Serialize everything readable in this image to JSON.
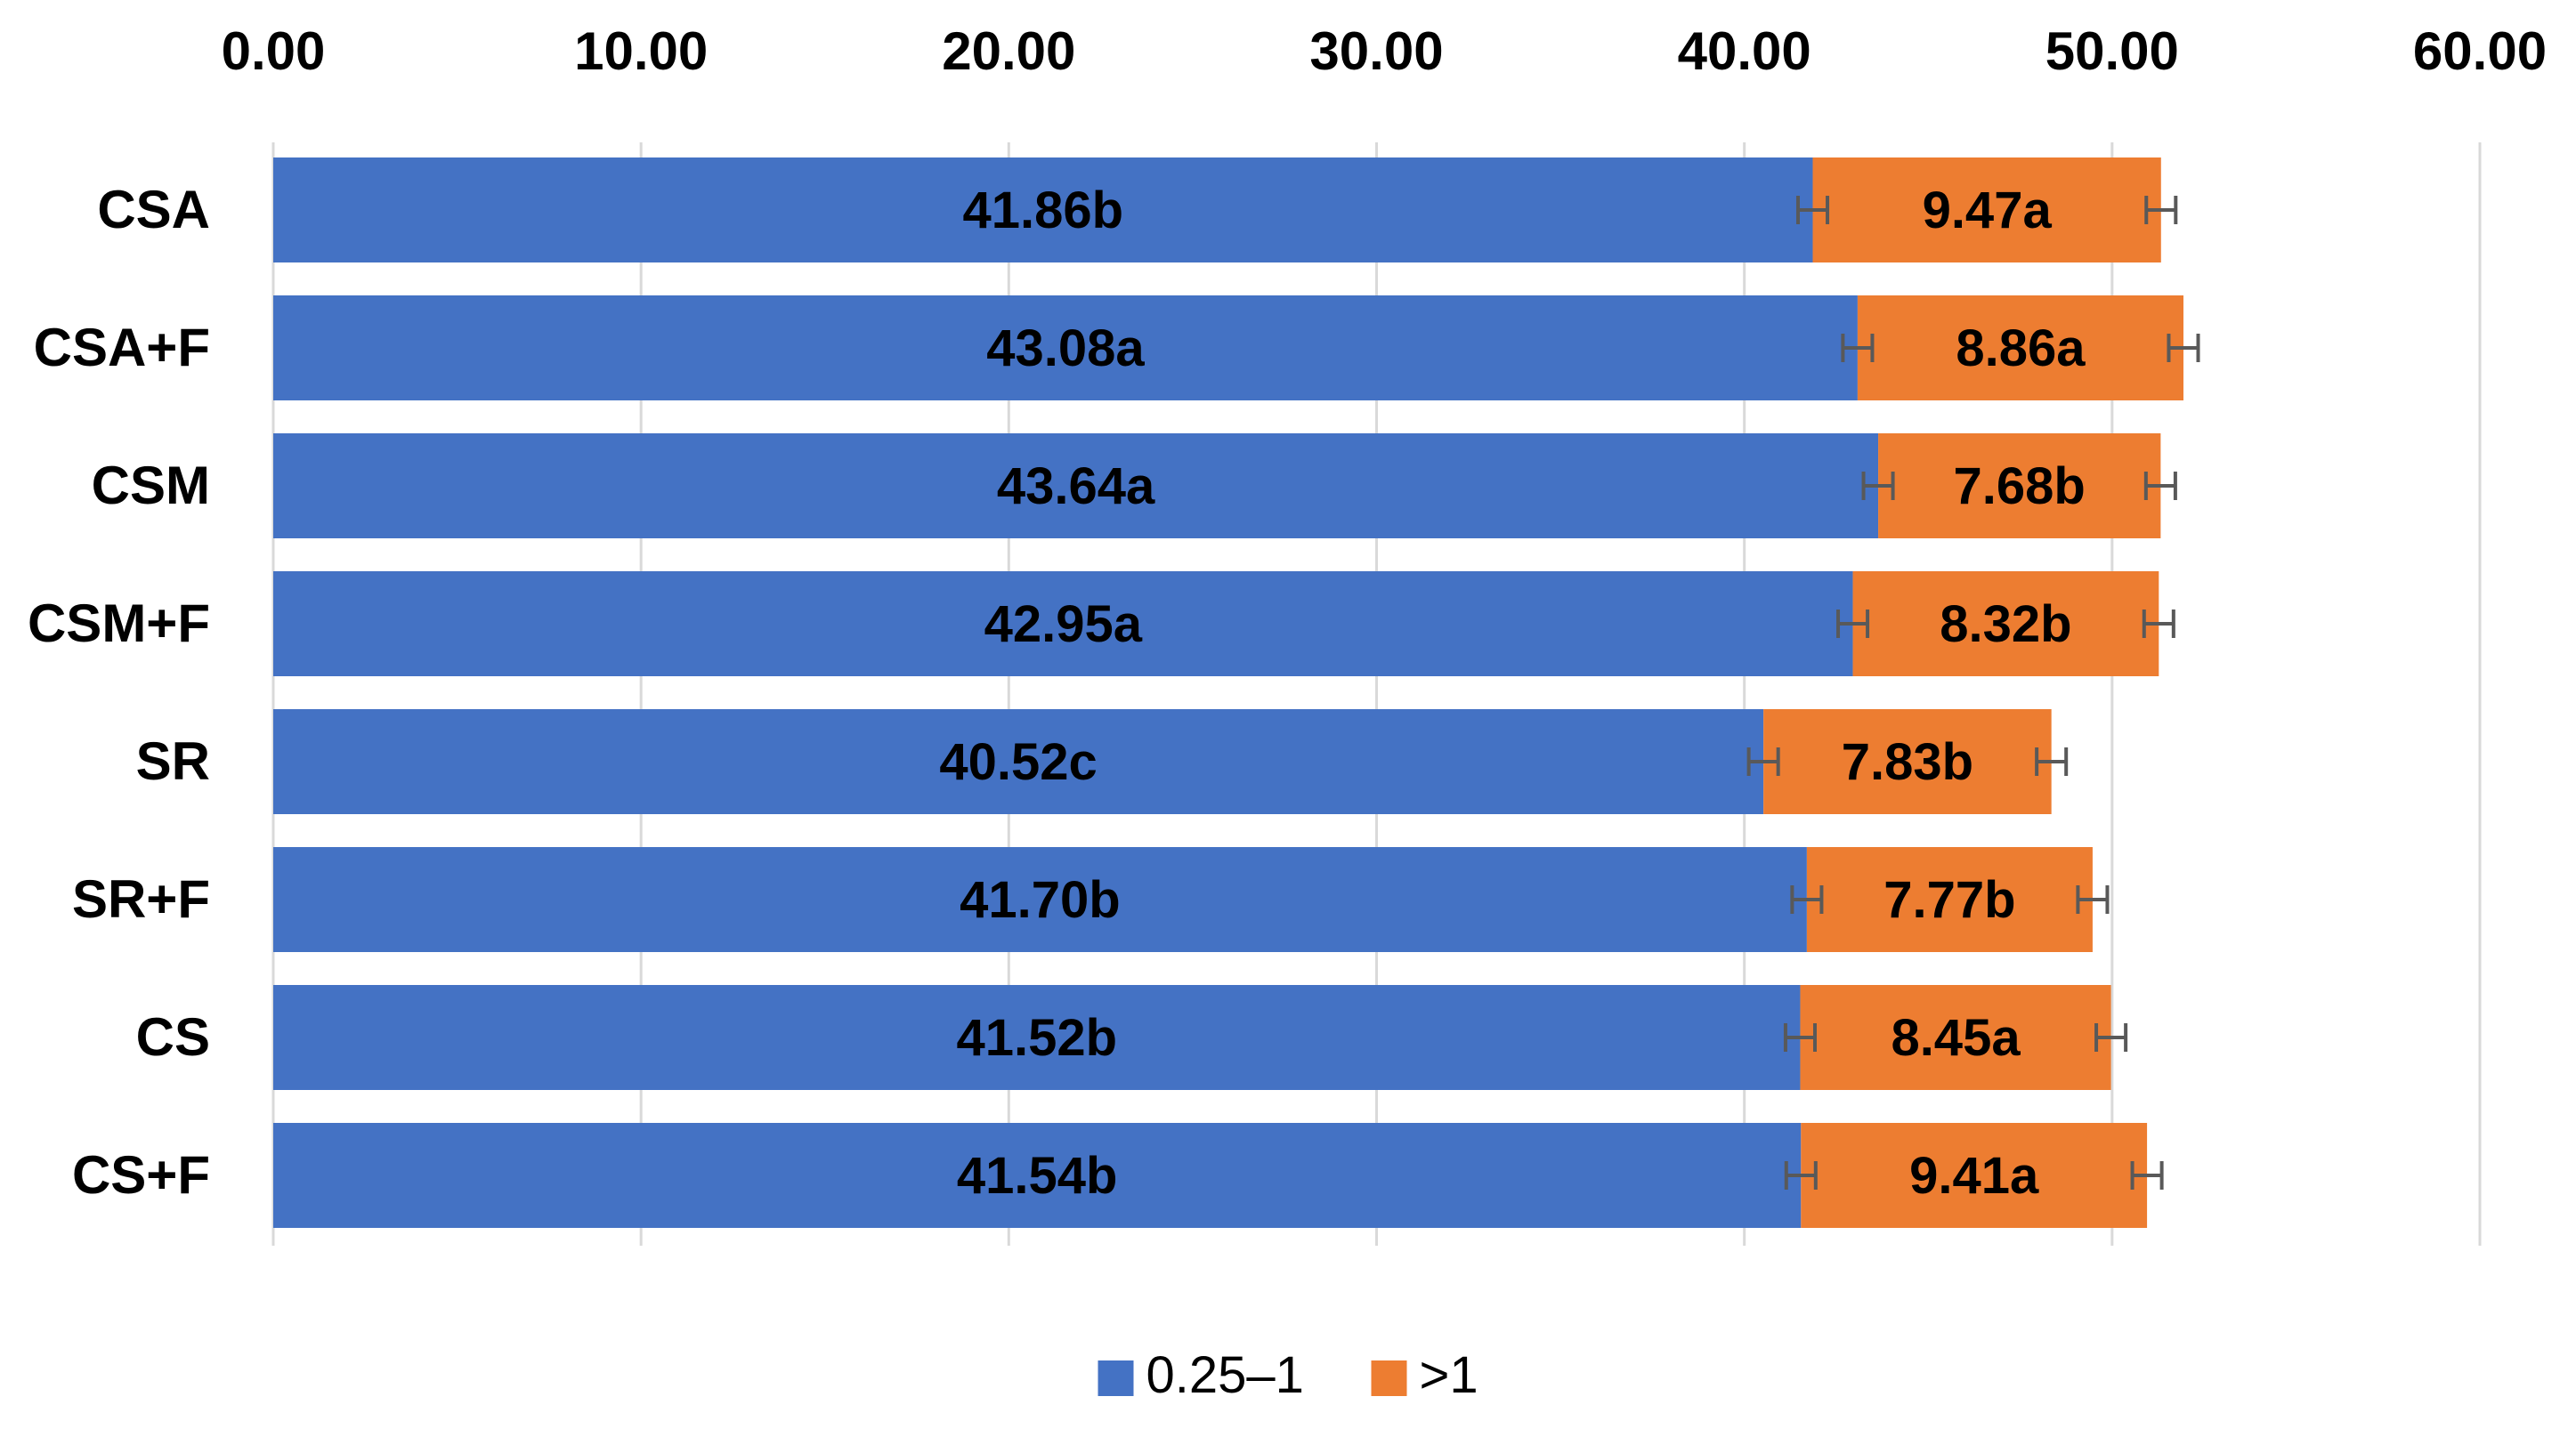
{
  "chart_data": {
    "type": "bar",
    "orientation": "horizontal",
    "stacked": true,
    "title": "",
    "xlabel": "",
    "ylabel": "",
    "xlim": [
      0,
      60
    ],
    "x_ticks": [
      "0.00",
      "10.00",
      "20.00",
      "30.00",
      "40.00",
      "50.00",
      "60.00"
    ],
    "x_axis_position": "top",
    "grid": true,
    "legend_position": "bottom-center",
    "categories": [
      "CSA",
      "CSA+F",
      "CSM",
      "CSM+F",
      "SR",
      "SR+F",
      "CS",
      "CS+F"
    ],
    "series": [
      {
        "name": "0.25–1",
        "color": "#4472c4",
        "values": [
          41.86,
          43.08,
          43.64,
          42.95,
          40.52,
          41.7,
          41.52,
          41.54
        ],
        "labels": [
          "41.86b",
          "43.08a",
          "43.64a",
          "42.95a",
          "40.52c",
          "41.70b",
          "41.52b",
          "41.54b"
        ],
        "errors": [
          0.4,
          0.4,
          0.4,
          0.4,
          0.4,
          0.4,
          0.4,
          0.4
        ]
      },
      {
        "name": ">1",
        "color": "#ed7d31",
        "values": [
          9.47,
          8.86,
          7.68,
          8.32,
          7.83,
          7.77,
          8.45,
          9.41
        ],
        "labels": [
          "9.47a",
          "8.86a",
          "7.68b",
          "8.32b",
          "7.83b",
          "7.77b",
          "8.45a",
          "9.41a"
        ],
        "errors": [
          0.4,
          0.4,
          0.4,
          0.4,
          0.4,
          0.4,
          0.4,
          0.4
        ]
      }
    ],
    "colors": {
      "grid": "#d9d9d9",
      "error_bar": "#595959",
      "text": "#000000"
    }
  }
}
